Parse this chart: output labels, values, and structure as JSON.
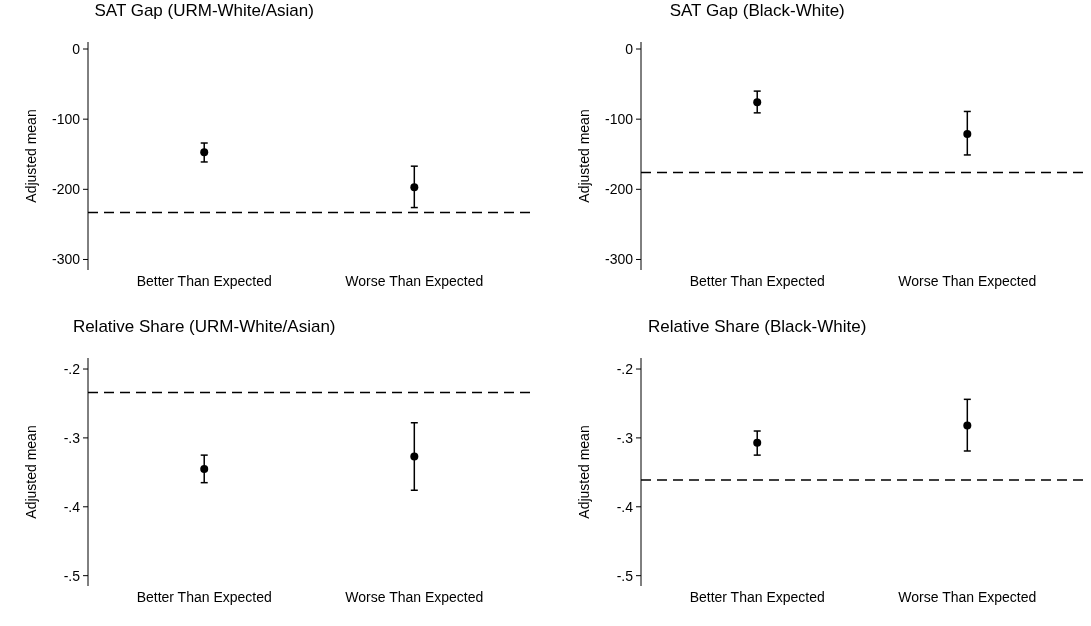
{
  "chart_data": [
    {
      "type": "scatter",
      "title": "SAT Gap (URM-White/Asian)",
      "ylabel": "Adjusted mean",
      "categories": [
        "Better Than Expected",
        "Worse Than Expected"
      ],
      "values": [
        -147,
        -197
      ],
      "errors": [
        [
          -161,
          -134
        ],
        [
          -226,
          -167
        ]
      ],
      "color": "#000000",
      "marker": "circle",
      "ylim": [
        -315,
        10
      ],
      "yticks": [
        0,
        -100,
        -200,
        -300
      ],
      "ref_lines": [
        {
          "axis": "y",
          "value": -233,
          "line_style": "dashed",
          "color": "#000000"
        }
      ],
      "grid": false
    },
    {
      "type": "scatter",
      "title": "SAT Gap (Black-White)",
      "ylabel": "Adjusted mean",
      "categories": [
        "Better Than Expected",
        "Worse Than Expected"
      ],
      "values": [
        -76,
        -121
      ],
      "errors": [
        [
          -91,
          -60
        ],
        [
          -151,
          -89
        ]
      ],
      "color": "#000000",
      "marker": "circle",
      "ylim": [
        -315,
        10
      ],
      "yticks": [
        0,
        -100,
        -200,
        -300
      ],
      "ref_lines": [
        {
          "axis": "y",
          "value": -176,
          "line_style": "dashed",
          "color": "#000000"
        }
      ],
      "grid": false
    },
    {
      "type": "scatter",
      "title": "Relative Share (URM-White/Asian)",
      "ylabel": "Adjusted mean",
      "categories": [
        "Better Than Expected",
        "Worse Than Expected"
      ],
      "values": [
        -0.345,
        -0.327
      ],
      "errors": [
        [
          -0.365,
          -0.325
        ],
        [
          -0.376,
          -0.278
        ]
      ],
      "color": "#000000",
      "marker": "circle",
      "ylim": [
        -0.515,
        -0.184
      ],
      "yticks": [
        {
          "value": -0.2,
          "label": "-.2"
        },
        {
          "value": -0.3,
          "label": "-.3"
        },
        {
          "value": -0.4,
          "label": "-.4"
        },
        {
          "value": -0.5,
          "label": "-.5"
        }
      ],
      "ref_lines": [
        {
          "axis": "y",
          "value": -0.234,
          "line_style": "dashed",
          "color": "#000000"
        }
      ],
      "grid": false
    },
    {
      "type": "scatter",
      "title": "Relative Share (Black-White)",
      "ylabel": "Adjusted mean",
      "categories": [
        "Better Than Expected",
        "Worse Than Expected"
      ],
      "values": [
        -0.307,
        -0.282
      ],
      "errors": [
        [
          -0.325,
          -0.29
        ],
        [
          -0.319,
          -0.244
        ]
      ],
      "color": "#000000",
      "marker": "circle",
      "ylim": [
        -0.515,
        -0.184
      ],
      "yticks": [
        {
          "value": -0.2,
          "label": "-.2"
        },
        {
          "value": -0.3,
          "label": "-.3"
        },
        {
          "value": -0.4,
          "label": "-.4"
        },
        {
          "value": -0.5,
          "label": "-.5"
        }
      ],
      "ref_lines": [
        {
          "axis": "y",
          "value": -0.361,
          "line_style": "dashed",
          "color": "#000000"
        }
      ],
      "grid": false
    }
  ]
}
